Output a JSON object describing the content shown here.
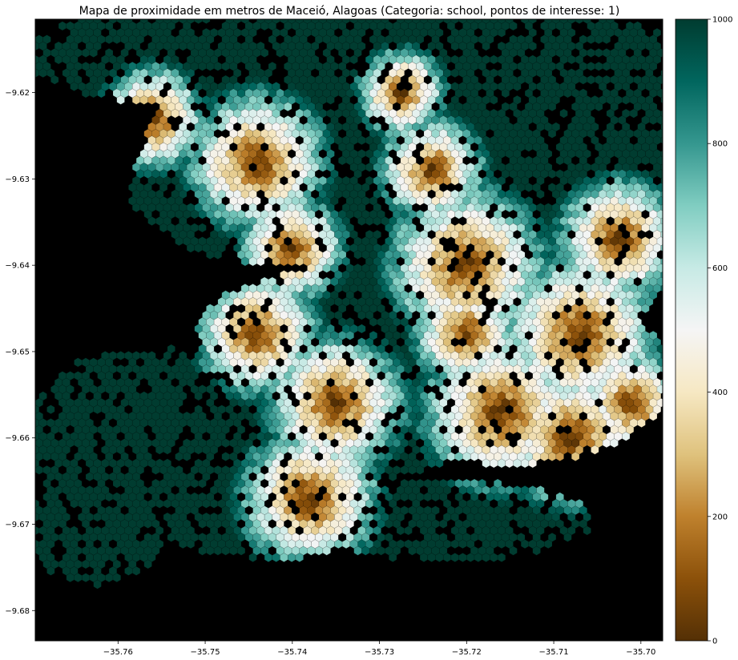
{
  "chart_data": {
    "type": "heatmap",
    "subtype": "hexbin-map",
    "title": "Mapa de proximidade em metros de Maceió, Alagoas (Categoria: school, pontos de interesse: 1)",
    "xlabel": "",
    "ylabel": "",
    "xlim": [
      -35.7695,
      -35.6975
    ],
    "ylim": [
      -9.6835,
      -9.6115
    ],
    "xticks": [
      -35.76,
      -35.75,
      -35.74,
      -35.73,
      -35.72,
      -35.71,
      -35.7
    ],
    "xtick_labels": [
      "−35.76",
      "−35.75",
      "−35.74",
      "−35.73",
      "−35.72",
      "−35.71",
      "−35.70"
    ],
    "yticks": [
      -9.62,
      -9.63,
      -9.64,
      -9.65,
      -9.66,
      -9.67,
      -9.68
    ],
    "ytick_labels": [
      "−9.62",
      "−9.63",
      "−9.64",
      "−9.65",
      "−9.66",
      "−9.67",
      "−9.68"
    ],
    "background_color": "#000000",
    "colormap": "BrBG",
    "colorbar": {
      "vmin": 0,
      "vmax": 1000,
      "ticks": [
        0,
        200,
        400,
        600,
        800,
        1000
      ],
      "tick_labels": [
        "0",
        "200",
        "400",
        "600",
        "800",
        "1000"
      ],
      "colors": [
        "#543005",
        "#8c510a",
        "#bf812d",
        "#dfc27d",
        "#f6e8c3",
        "#f5f5f5",
        "#c7eae5",
        "#80cdc1",
        "#35978f",
        "#01665e",
        "#003c30"
      ]
    },
    "proximity_hotspots": [
      {
        "x": -35.72,
        "y": -9.64,
        "r": 0.0045
      },
      {
        "x": -35.7025,
        "y": -9.637,
        "r": 0.0035
      },
      {
        "x": -35.744,
        "y": -9.628,
        "r": 0.004
      },
      {
        "x": -35.756,
        "y": -9.623,
        "r": 0.003
      },
      {
        "x": -35.74,
        "y": -9.638,
        "r": 0.003
      },
      {
        "x": -35.744,
        "y": -9.648,
        "r": 0.0035
      },
      {
        "x": -35.735,
        "y": -9.656,
        "r": 0.004
      },
      {
        "x": -35.738,
        "y": -9.667,
        "r": 0.004
      },
      {
        "x": -35.724,
        "y": -9.629,
        "r": 0.003
      },
      {
        "x": -35.7275,
        "y": -9.62,
        "r": 0.0025
      },
      {
        "x": -35.716,
        "y": -9.657,
        "r": 0.0045
      },
      {
        "x": -35.707,
        "y": -9.648,
        "r": 0.0045
      },
      {
        "x": -35.708,
        "y": -9.66,
        "r": 0.004
      },
      {
        "x": -35.701,
        "y": -9.656,
        "r": 0.003
      },
      {
        "x": -35.72,
        "y": -9.648,
        "r": 0.003
      }
    ]
  }
}
